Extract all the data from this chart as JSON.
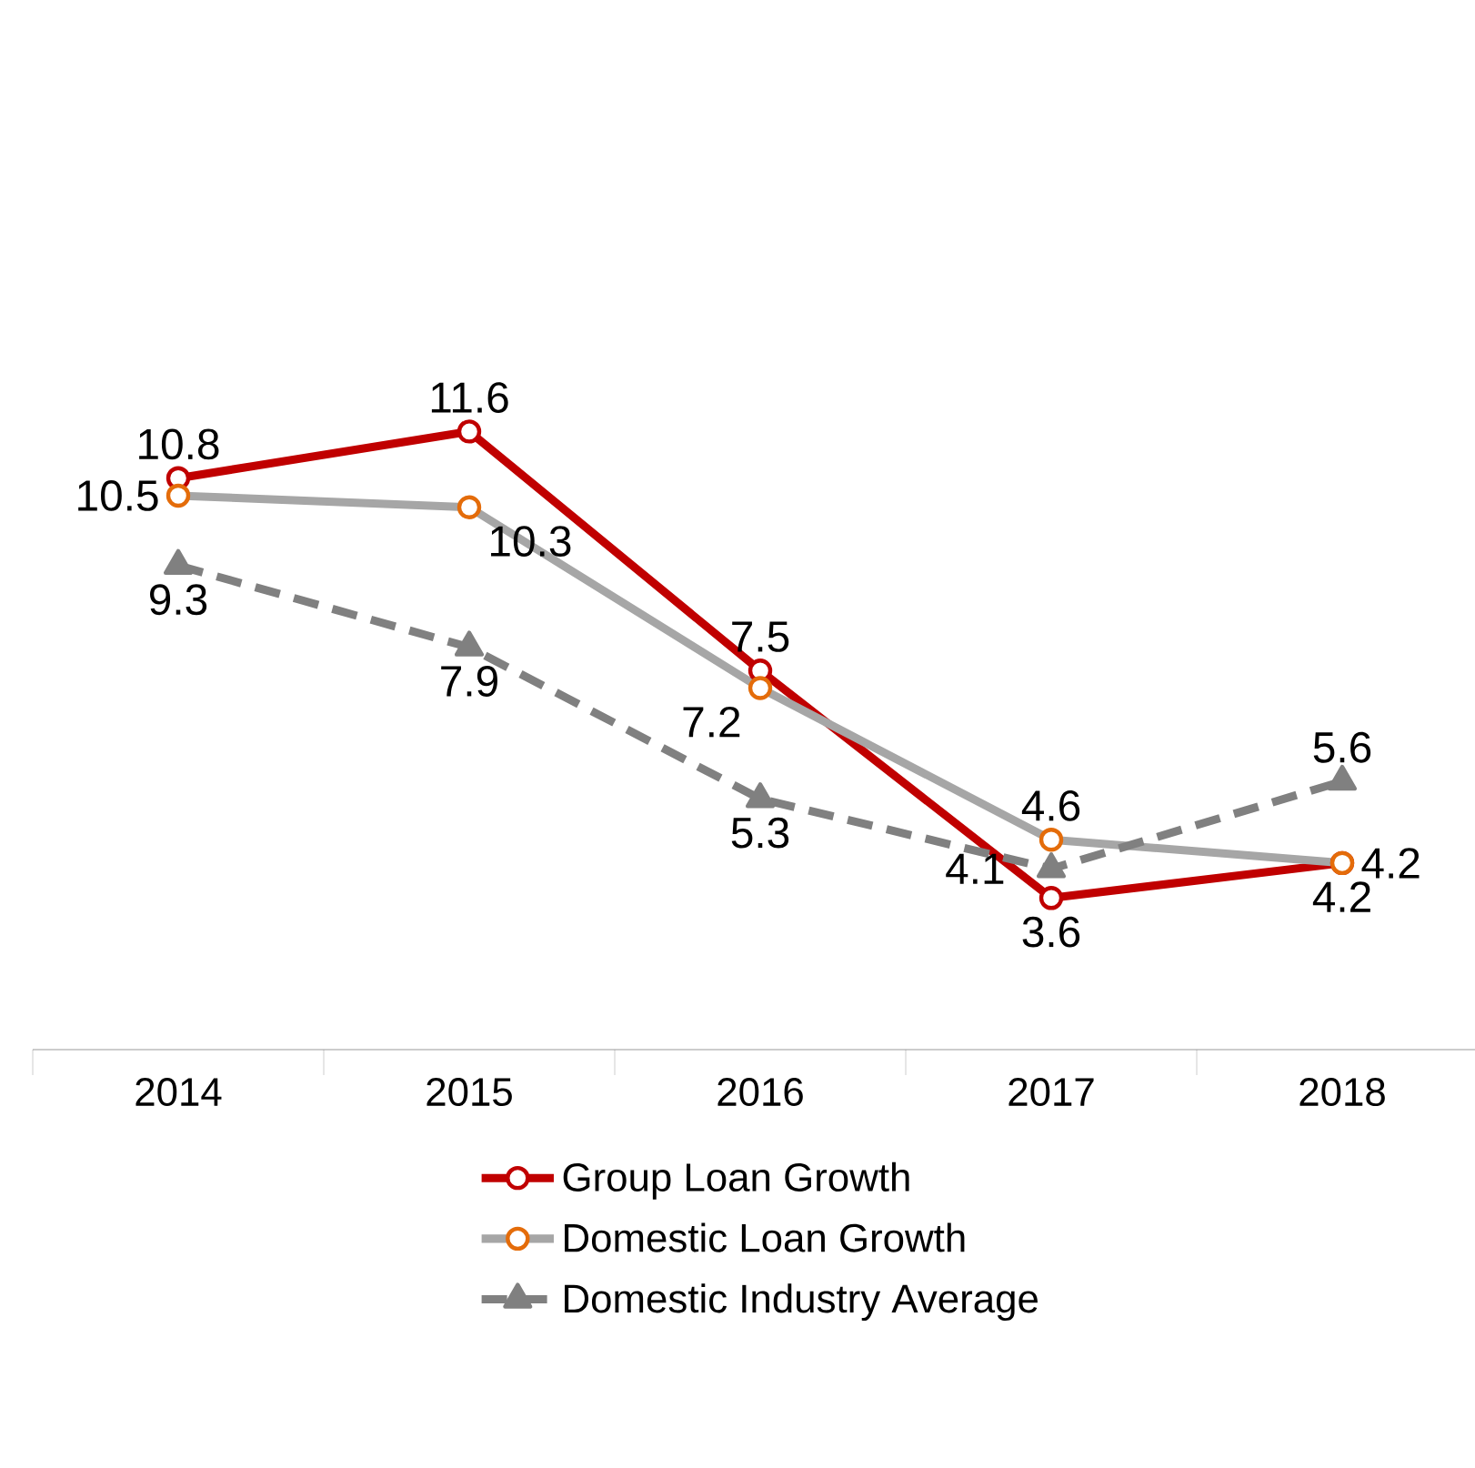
{
  "chart_data": {
    "type": "line",
    "categories": [
      "2014",
      "2015",
      "2016",
      "2017",
      "2018"
    ],
    "series": [
      {
        "name": "Group Loan Growth",
        "color": "#c00000",
        "marker": "circle",
        "line_style": "solid",
        "values": [
          10.8,
          11.6,
          7.5,
          3.6,
          4.2
        ]
      },
      {
        "name": "Domestic Loan Growth",
        "color": "#a6a6a6",
        "marker": "circle",
        "line_style": "solid",
        "values": [
          10.5,
          10.3,
          7.2,
          4.6,
          4.2
        ]
      },
      {
        "name": "Domestic Industry Average",
        "color": "#808080",
        "marker": "triangle",
        "line_style": "dashed",
        "values": [
          9.3,
          7.9,
          5.3,
          4.1,
          5.6
        ]
      }
    ],
    "data_labels": true,
    "legend": "bottom",
    "grid": false,
    "tick_labels": "x"
  }
}
